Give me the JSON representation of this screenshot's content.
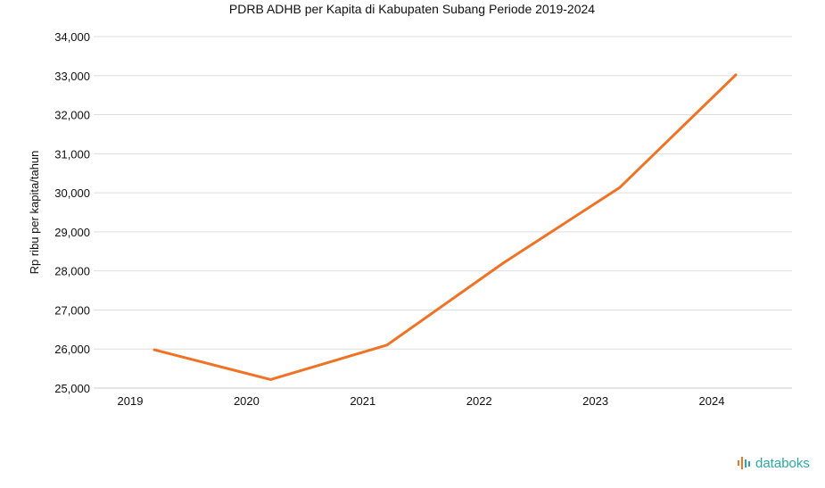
{
  "chart_data": {
    "type": "line",
    "title": "PDRB ADHB per Kapita di Kabupaten Subang Periode 2019-2024",
    "xlabel": "",
    "ylabel": "Rp ribu per kapita/tahun",
    "categories": [
      "2019",
      "2020",
      "2021",
      "2022",
      "2023",
      "2024"
    ],
    "series": [
      {
        "values": [
          25980,
          25220,
          26100,
          28200,
          30130,
          33020
        ]
      }
    ],
    "ylim": [
      25000,
      34000
    ],
    "yticks": [
      "25,000",
      "26,000",
      "27,000",
      "28,000",
      "29,000",
      "30,000",
      "31,000",
      "32,000",
      "33,000",
      "34,000"
    ],
    "grid": true,
    "legend": "none",
    "line_color": "#f07325"
  },
  "brand": {
    "name": "databoks",
    "color": "#2aa7a7"
  }
}
